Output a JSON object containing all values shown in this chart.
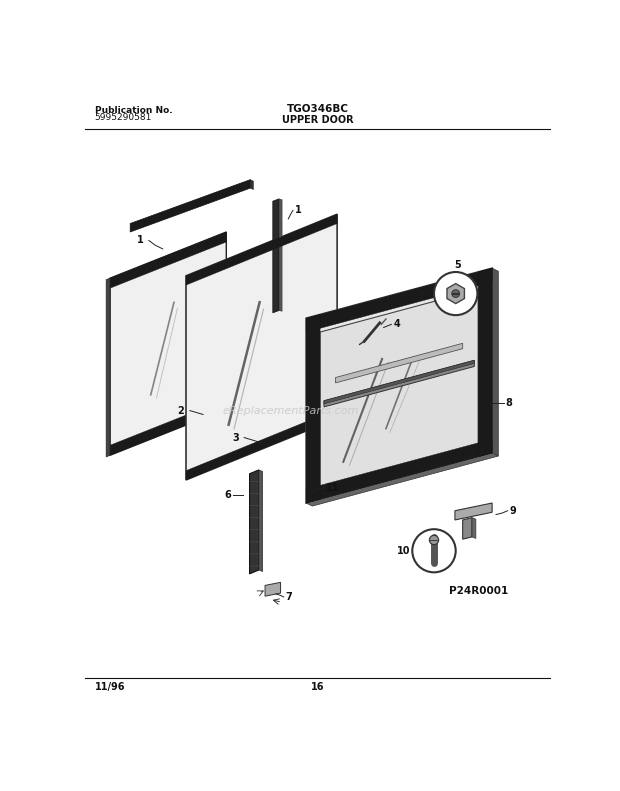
{
  "title_left_line1": "Publication No.",
  "title_left_line2": "5995290581",
  "title_center_line1": "TGO346BC",
  "title_center_line2": "UPPER DOOR",
  "footer_left": "11/96",
  "footer_center": "16",
  "part_code": "P24R0001",
  "bg_color": "#ffffff",
  "line_color": "#222222",
  "dark_color": "#111111",
  "panel_face": "#f0f0f0",
  "panel_edge": "#222222",
  "strip_color": "#1a1a1a",
  "frame_inner": "#e8e8e8",
  "gray_med": "#888888",
  "watermark_color": "#c8c8c8",
  "watermark_text": "eReplacementParts.com"
}
